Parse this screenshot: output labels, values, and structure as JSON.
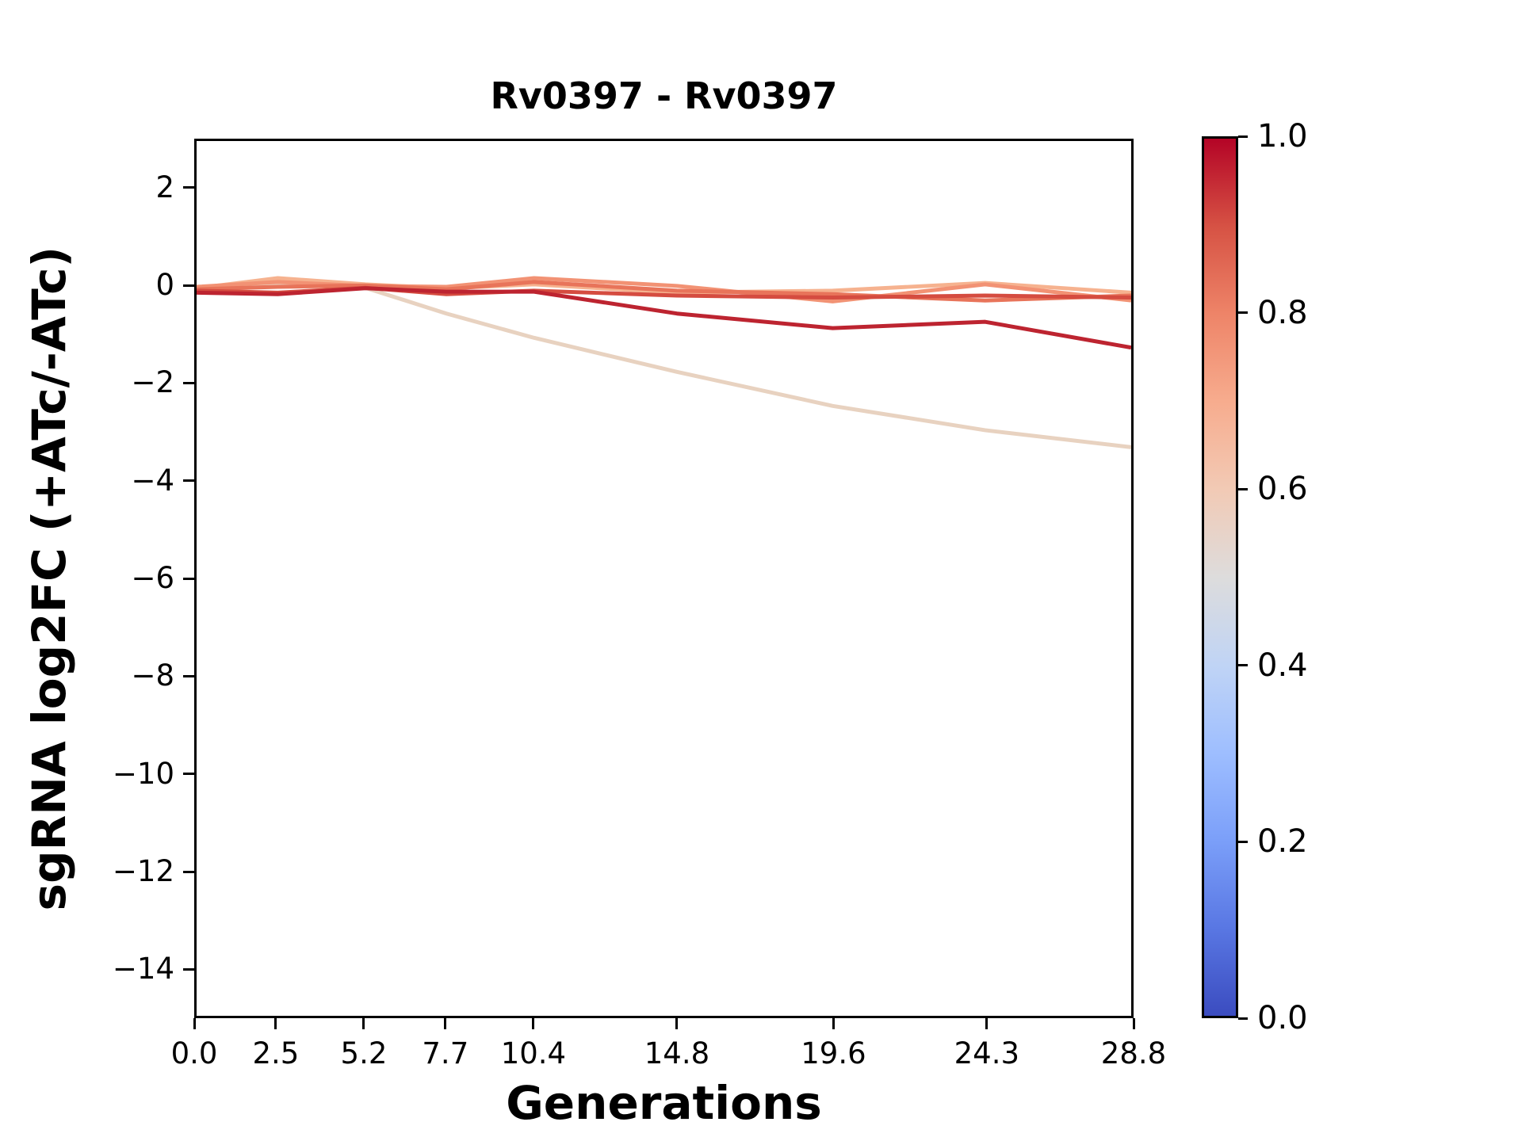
{
  "chart_data": {
    "type": "line",
    "title": "Rv0397 - Rv0397",
    "xlabel": "Generations",
    "ylabel": "sgRNA log2FC (+ATc/-ATc)",
    "x": [
      0.0,
      2.5,
      5.2,
      7.7,
      10.4,
      14.8,
      19.6,
      24.3,
      28.8
    ],
    "xlim": [
      0.0,
      28.8
    ],
    "ylim": [
      -15.0,
      3.0
    ],
    "xticks": [
      0.0,
      2.5,
      5.2,
      7.7,
      10.4,
      14.8,
      19.6,
      24.3,
      28.8
    ],
    "xtick_labels": [
      "0.0",
      "2.5",
      "5.2",
      "7.7",
      "10.4",
      "14.8",
      "19.6",
      "24.3",
      "28.8"
    ],
    "yticks": [
      2,
      0,
      -2,
      -4,
      -6,
      -8,
      -10,
      -12,
      -14
    ],
    "ytick_labels": [
      "2",
      "0",
      "−2",
      "−4",
      "−6",
      "−8",
      "−10",
      "−12",
      "−14"
    ],
    "grid": false,
    "legend_position": "none",
    "series": [
      {
        "name": "line-1",
        "cmap_value": 0.58,
        "color": "#e8d2c0",
        "values": [
          -0.05,
          0.08,
          -0.02,
          -0.55,
          -1.05,
          -1.75,
          -2.45,
          -2.95,
          -3.3
        ]
      },
      {
        "name": "line-2",
        "cmap_value": 0.65,
        "color": "#f6b28f",
        "values": [
          -0.03,
          0.18,
          0.05,
          -0.03,
          0.05,
          -0.12,
          -0.08,
          0.08,
          -0.12
        ]
      },
      {
        "name": "line-3",
        "cmap_value": 0.72,
        "color": "#f29274",
        "values": [
          0.0,
          0.1,
          0.02,
          0.0,
          0.18,
          0.02,
          -0.3,
          0.05,
          -0.28
        ]
      },
      {
        "name": "line-4",
        "cmap_value": 0.8,
        "color": "#e8745a",
        "values": [
          -0.05,
          0.0,
          0.03,
          -0.05,
          0.1,
          -0.08,
          -0.15,
          -0.28,
          -0.18
        ]
      },
      {
        "name": "line-5",
        "cmap_value": 0.88,
        "color": "#d54c40",
        "values": [
          -0.08,
          -0.12,
          -0.02,
          -0.15,
          -0.08,
          -0.18,
          -0.22,
          -0.18,
          -0.22
        ]
      },
      {
        "name": "line-6",
        "cmap_value": 0.97,
        "color": "#bd2430",
        "values": [
          -0.12,
          -0.15,
          -0.03,
          -0.1,
          -0.1,
          -0.55,
          -0.85,
          -0.72,
          -1.25
        ]
      }
    ],
    "colorbar": {
      "cmap": "coolwarm",
      "ticks": [
        "0.0",
        "0.2",
        "0.4",
        "0.6",
        "0.8",
        "1.0"
      ],
      "tick_values": [
        0.0,
        0.2,
        0.4,
        0.6,
        0.8,
        1.0
      ],
      "gradient_stops": [
        "#3b4cc0",
        "#5977e3",
        "#7b9ff9",
        "#9ebeff",
        "#c0d4f5",
        "#dddcdc",
        "#f2cab5",
        "#f7ac8e",
        "#ee8468",
        "#d65244",
        "#b40426"
      ]
    }
  }
}
